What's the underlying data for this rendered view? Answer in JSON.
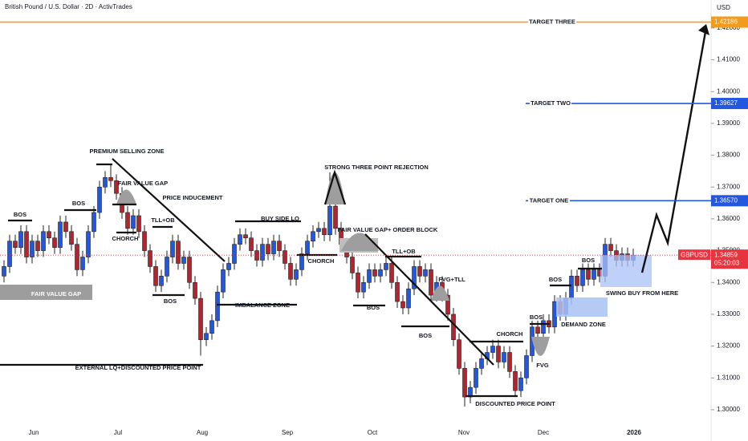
{
  "chart_data": {
    "type": "candlestick",
    "title": "British Pound / U.S. Dollar · 2D · ActivTrades",
    "currency": "USD",
    "symbol": "GBPUSD",
    "countdown": "05:20:03",
    "up_color": "#2457e0",
    "down_color": "#b3242f",
    "ylim": [
      1.2952,
      1.4288
    ],
    "yticks": [
      {
        "value": 1.3,
        "label": "1.30000"
      },
      {
        "value": 1.31,
        "label": "1.31000"
      },
      {
        "value": 1.32,
        "label": "1.32000"
      },
      {
        "value": 1.33,
        "label": "1.33000"
      },
      {
        "value": 1.34,
        "label": "1.34000"
      },
      {
        "value": 1.35,
        "label": "1.35000"
      },
      {
        "value": 1.36,
        "label": "1.36000"
      },
      {
        "value": 1.37,
        "label": "1.37000"
      },
      {
        "value": 1.38,
        "label": "1.38000"
      },
      {
        "value": 1.39,
        "label": "1.39000"
      },
      {
        "value": 1.4,
        "label": "1.40000"
      },
      {
        "value": 1.41,
        "label": "1.41000"
      },
      {
        "value": 1.42,
        "label": "1.42000"
      }
    ],
    "x_labels": [
      "Jun",
      "Jul",
      "Aug",
      "Sep",
      "Oct",
      "Nov",
      "Dec",
      "2026"
    ],
    "open": [
      1.342,
      1.345,
      1.353,
      1.351,
      1.356,
      1.348,
      1.353,
      1.35,
      1.356,
      1.354,
      1.351,
      1.359,
      1.356,
      1.352,
      1.344,
      1.348,
      1.356,
      1.362,
      1.37,
      1.373,
      1.372,
      1.368,
      1.362,
      1.357,
      1.361,
      1.356,
      1.35,
      1.345,
      1.339,
      1.342,
      1.348,
      1.353,
      1.346,
      1.348,
      1.34,
      1.335,
      1.322,
      1.324,
      1.328,
      1.337,
      1.344,
      1.346,
      1.352,
      1.355,
      1.354,
      1.35,
      1.347,
      1.352,
      1.349,
      1.353,
      1.35,
      1.346,
      1.341,
      1.344,
      1.349,
      1.353,
      1.356,
      1.357,
      1.355,
      1.364,
      1.357,
      1.352,
      1.348,
      1.343,
      1.337,
      1.34,
      1.344,
      1.342,
      1.344,
      1.346,
      1.34,
      1.334,
      1.332,
      1.338,
      1.345,
      1.342,
      1.344,
      1.336,
      1.34,
      1.336,
      1.33,
      1.322,
      1.313,
      1.304,
      1.307,
      1.313,
      1.316,
      1.318,
      1.32,
      1.315,
      1.318,
      1.312,
      1.306,
      1.31,
      1.317,
      1.326,
      1.324,
      1.328,
      1.326,
      1.334,
      1.33,
      1.335,
      1.342,
      1.339,
      1.344,
      1.341,
      1.344,
      1.342,
      1.352,
      1.35,
      1.347,
      1.349,
      1.347
    ],
    "high": [
      1.347,
      1.355,
      1.355,
      1.358,
      1.358,
      1.355,
      1.355,
      1.358,
      1.358,
      1.356,
      1.361,
      1.361,
      1.358,
      1.354,
      1.35,
      1.358,
      1.364,
      1.372,
      1.375,
      1.377,
      1.374,
      1.37,
      1.364,
      1.363,
      1.363,
      1.358,
      1.352,
      1.347,
      1.344,
      1.35,
      1.355,
      1.355,
      1.35,
      1.35,
      1.342,
      1.337,
      1.326,
      1.33,
      1.339,
      1.346,
      1.348,
      1.354,
      1.357,
      1.357,
      1.356,
      1.352,
      1.354,
      1.354,
      1.355,
      1.355,
      1.352,
      1.348,
      1.346,
      1.351,
      1.355,
      1.358,
      1.359,
      1.359,
      1.3746,
      1.366,
      1.359,
      1.354,
      1.35,
      1.345,
      1.342,
      1.346,
      1.346,
      1.346,
      1.348,
      1.348,
      1.342,
      1.336,
      1.34,
      1.347,
      1.347,
      1.346,
      1.346,
      1.342,
      1.342,
      1.338,
      1.332,
      1.324,
      1.315,
      1.309,
      1.315,
      1.318,
      1.32,
      1.322,
      1.322,
      1.32,
      1.32,
      1.314,
      1.312,
      1.319,
      1.328,
      1.328,
      1.33,
      1.33,
      1.336,
      1.336,
      1.337,
      1.344,
      1.344,
      1.346,
      1.346,
      1.346,
      1.346,
      1.354,
      1.354,
      1.352,
      1.351,
      1.351,
      1.3506
    ],
    "low": [
      1.34,
      1.343,
      1.349,
      1.349,
      1.346,
      1.346,
      1.348,
      1.348,
      1.352,
      1.349,
      1.349,
      1.354,
      1.35,
      1.342,
      1.342,
      1.346,
      1.354,
      1.36,
      1.368,
      1.37,
      1.366,
      1.36,
      1.355,
      1.355,
      1.354,
      1.348,
      1.343,
      1.337,
      1.337,
      1.34,
      1.346,
      1.344,
      1.344,
      1.338,
      1.333,
      1.317,
      1.32,
      1.322,
      1.326,
      1.335,
      1.342,
      1.344,
      1.35,
      1.352,
      1.348,
      1.345,
      1.345,
      1.347,
      1.347,
      1.348,
      1.344,
      1.339,
      1.339,
      1.342,
      1.347,
      1.351,
      1.354,
      1.353,
      1.353,
      1.355,
      1.35,
      1.346,
      1.341,
      1.335,
      1.335,
      1.338,
      1.34,
      1.34,
      1.342,
      1.338,
      1.332,
      1.33,
      1.33,
      1.336,
      1.34,
      1.34,
      1.334,
      1.334,
      1.334,
      1.328,
      1.32,
      1.311,
      1.301,
      1.302,
      1.305,
      1.311,
      1.314,
      1.316,
      1.313,
      1.313,
      1.31,
      1.304,
      1.304,
      1.308,
      1.315,
      1.322,
      1.322,
      1.324,
      1.324,
      1.328,
      1.328,
      1.333,
      1.337,
      1.337,
      1.339,
      1.339,
      1.34,
      1.34,
      1.348,
      1.345,
      1.345,
      1.345,
      1.345
    ],
    "close": [
      1.345,
      1.353,
      1.351,
      1.356,
      1.348,
      1.353,
      1.35,
      1.356,
      1.354,
      1.351,
      1.359,
      1.356,
      1.352,
      1.344,
      1.348,
      1.356,
      1.362,
      1.37,
      1.373,
      1.372,
      1.368,
      1.362,
      1.357,
      1.361,
      1.356,
      1.35,
      1.345,
      1.339,
      1.342,
      1.348,
      1.353,
      1.346,
      1.348,
      1.34,
      1.335,
      1.322,
      1.324,
      1.328,
      1.337,
      1.344,
      1.346,
      1.352,
      1.355,
      1.354,
      1.35,
      1.347,
      1.352,
      1.349,
      1.353,
      1.35,
      1.346,
      1.341,
      1.344,
      1.349,
      1.353,
      1.356,
      1.357,
      1.355,
      1.364,
      1.357,
      1.352,
      1.348,
      1.343,
      1.337,
      1.34,
      1.344,
      1.342,
      1.344,
      1.346,
      1.34,
      1.334,
      1.332,
      1.338,
      1.345,
      1.342,
      1.344,
      1.336,
      1.34,
      1.336,
      1.33,
      1.322,
      1.313,
      1.304,
      1.307,
      1.313,
      1.316,
      1.318,
      1.32,
      1.315,
      1.318,
      1.312,
      1.306,
      1.31,
      1.317,
      1.326,
      1.324,
      1.328,
      1.326,
      1.334,
      1.33,
      1.335,
      1.342,
      1.339,
      1.344,
      1.341,
      1.344,
      1.342,
      1.352,
      1.35,
      1.347,
      1.349,
      1.347,
      1.34859
    ],
    "current_price": {
      "value": 1.34859,
      "value_label": "1.34859"
    },
    "levels": [
      {
        "label": "TARGET THREE",
        "value": 1.42186,
        "value_label": "1.42186",
        "color": "#f29b1d"
      },
      {
        "label": "TARGET TWO",
        "value": 1.39627,
        "value_label": "1.39627",
        "color": "#2457e0"
      },
      {
        "label": "TARGET ONE",
        "value": 1.3657,
        "value_label": "1.36570",
        "color": "#2457e0"
      }
    ],
    "annotations": [
      "PREMIUM SELLING ZONE",
      "FAIR VALUE GAP",
      "PRICE INDUCEMENT",
      "TLL+OB",
      "CHORCH",
      "BOS",
      "BOS",
      "FAIR VALUE GAP",
      "BOS",
      "IMBALANCE ZONE",
      "EXTERNAL LQ+DISCOUNTED PRICE POINT",
      "BUY SIDE LQ",
      "STRONG THREE POINT REJECTION",
      "FAIR VALUE GAP+ ORDER BLOCK",
      "CHORCH",
      "TLL+OB",
      "BOS",
      "FVG+TLL",
      "BOS",
      "CHORCH",
      "DISCOUNTED PRICE POINT",
      "BOS",
      "FVG",
      "BOS",
      "BOS",
      "DEMAND ZONE",
      "SWING BUY FROM HERE"
    ]
  }
}
